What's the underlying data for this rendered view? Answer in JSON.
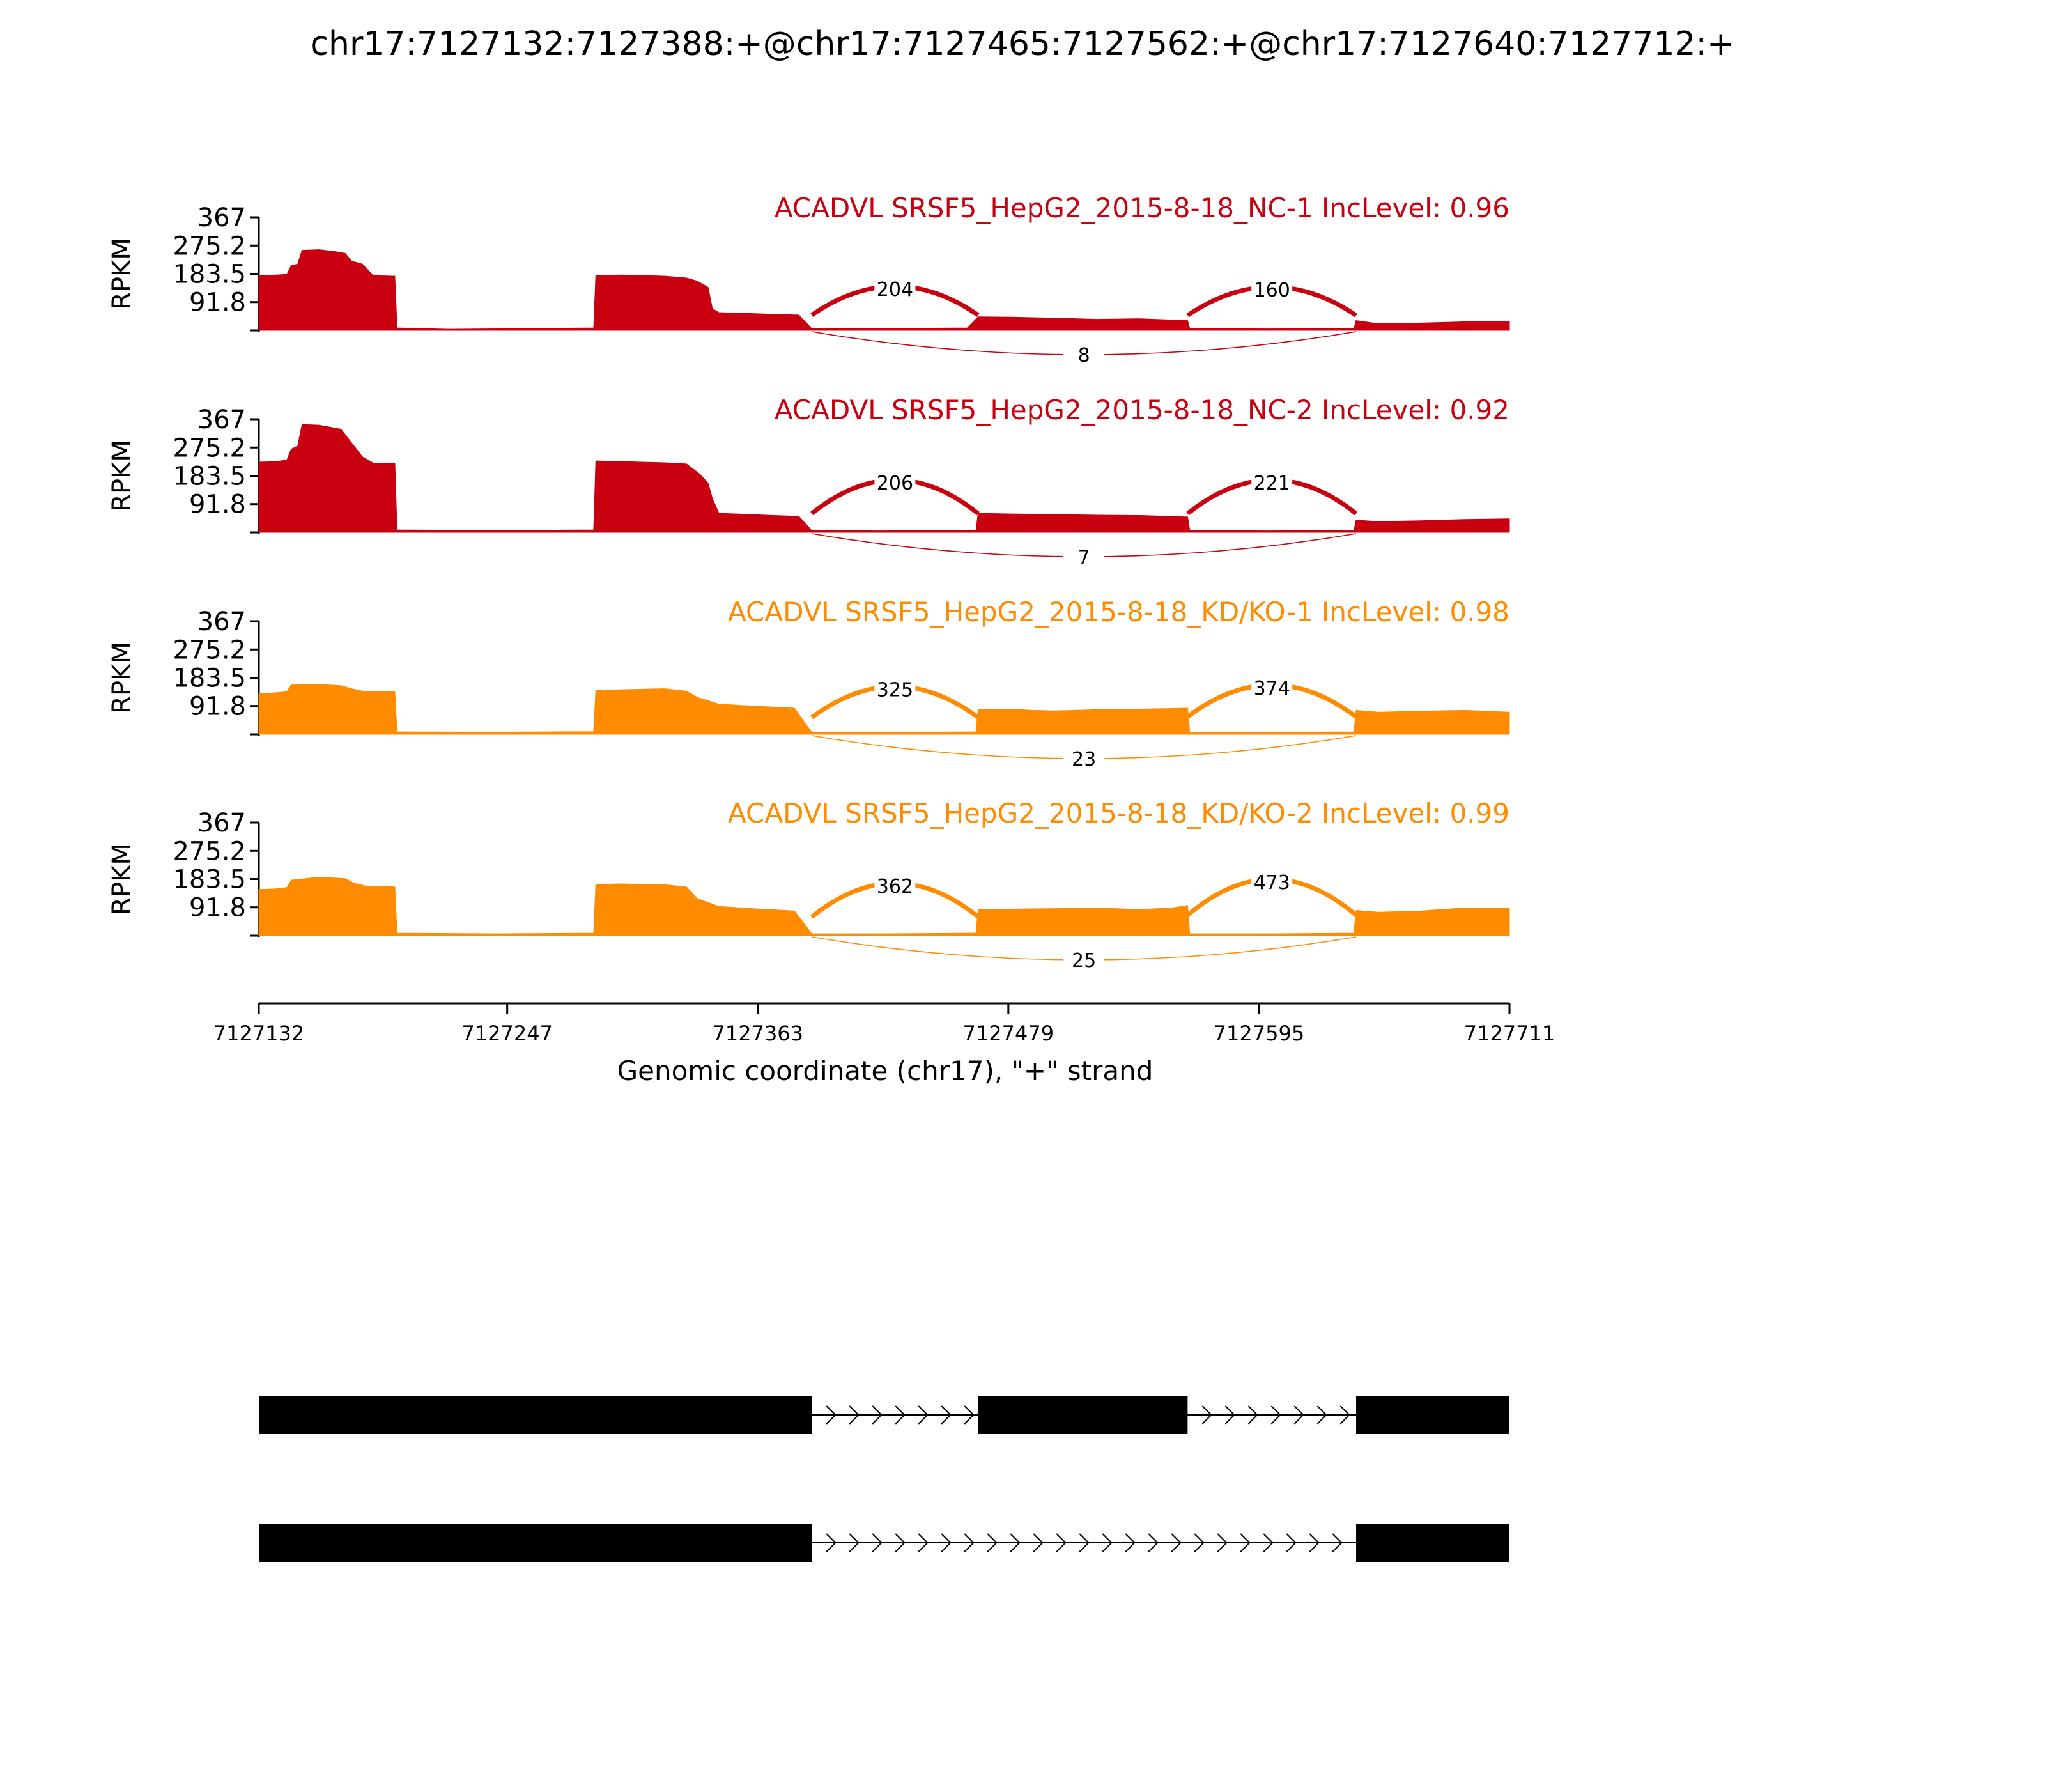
{
  "figure": {
    "title": "chr17:7127132:7127388:+@chr17:7127465:7127562:+@chr17:7127640:7127712:+"
  },
  "chart_data": {
    "type": "area",
    "title": "chr17:7127132:7127388:+@chr17:7127465:7127562:+@chr17:7127640:7127712:+",
    "xlabel": "Genomic coordinate (chr17), \"+\" strand",
    "ylabel": "RPKM",
    "xlim": [
      7127132,
      7127711
    ],
    "ylim": [
      0,
      367
    ],
    "xticks": [
      7127132,
      7127247,
      7127363,
      7127479,
      7127595,
      7127711
    ],
    "yticks": [
      "91.8",
      "183.5",
      "275.2",
      "367"
    ],
    "yticks_values": [
      91.8,
      183.5,
      275.2,
      367
    ],
    "grid": false,
    "colors": {
      "NC": "#c8000f",
      "KD": "#ff8c00"
    },
    "tracks": [
      {
        "name": "ACADVL SRSF5_HepG2_2015-8-18_NC-1 IncLevel: 0.96",
        "group": "NC",
        "color": "#c8000f",
        "coverage": [
          [
            7127132,
            178
          ],
          [
            7127140,
            180
          ],
          [
            7127145,
            182
          ],
          [
            7127147,
            210
          ],
          [
            7127150,
            215
          ],
          [
            7127152,
            260
          ],
          [
            7127160,
            262
          ],
          [
            7127168,
            255
          ],
          [
            7127172,
            250
          ],
          [
            7127175,
            225
          ],
          [
            7127180,
            215
          ],
          [
            7127185,
            178
          ],
          [
            7127195,
            176
          ],
          [
            7127196,
            8
          ],
          [
            7127220,
            4
          ],
          [
            7127260,
            6
          ],
          [
            7127287,
            8
          ],
          [
            7127288,
            178
          ],
          [
            7127300,
            180
          ],
          [
            7127320,
            176
          ],
          [
            7127330,
            170
          ],
          [
            7127335,
            160
          ],
          [
            7127340,
            140
          ],
          [
            7127342,
            70
          ],
          [
            7127345,
            58
          ],
          [
            7127360,
            55
          ],
          [
            7127370,
            52
          ],
          [
            7127382,
            50
          ],
          [
            7127388,
            6
          ],
          [
            7127420,
            6
          ],
          [
            7127460,
            8
          ],
          [
            7127465,
            44
          ],
          [
            7127480,
            43
          ],
          [
            7127500,
            40
          ],
          [
            7127520,
            36
          ],
          [
            7127540,
            38
          ],
          [
            7127562,
            32
          ],
          [
            7127563,
            6
          ],
          [
            7127600,
            5
          ],
          [
            7127639,
            6
          ],
          [
            7127640,
            32
          ],
          [
            7127650,
            22
          ],
          [
            7127670,
            24
          ],
          [
            7127690,
            28
          ],
          [
            7127711,
            28
          ]
        ],
        "junctions": [
          {
            "from": 7127388,
            "to": 7127465,
            "count": "204",
            "level": 118,
            "side": "above"
          },
          {
            "from": 7127562,
            "to": 7127640,
            "count": "160",
            "level": 116,
            "side": "above"
          },
          {
            "from": 7127388,
            "to": 7127640,
            "count": "8",
            "side": "below"
          }
        ]
      },
      {
        "name": "ACADVL SRSF5_HepG2_2015-8-18_NC-2 IncLevel: 0.92",
        "group": "NC",
        "color": "#c8000f",
        "coverage": [
          [
            7127132,
            228
          ],
          [
            7127140,
            230
          ],
          [
            7127145,
            235
          ],
          [
            7127147,
            270
          ],
          [
            7127150,
            280
          ],
          [
            7127152,
            350
          ],
          [
            7127160,
            348
          ],
          [
            7127166,
            340
          ],
          [
            7127170,
            335
          ],
          [
            7127175,
            290
          ],
          [
            7127180,
            245
          ],
          [
            7127185,
            225
          ],
          [
            7127195,
            225
          ],
          [
            7127196,
            8
          ],
          [
            7127240,
            6
          ],
          [
            7127287,
            8
          ],
          [
            7127288,
            232
          ],
          [
            7127300,
            230
          ],
          [
            7127320,
            226
          ],
          [
            7127330,
            222
          ],
          [
            7127336,
            190
          ],
          [
            7127340,
            160
          ],
          [
            7127342,
            110
          ],
          [
            7127345,
            62
          ],
          [
            7127360,
            58
          ],
          [
            7127370,
            55
          ],
          [
            7127382,
            52
          ],
          [
            7127388,
            6
          ],
          [
            7127420,
            5
          ],
          [
            7127464,
            6
          ],
          [
            7127465,
            62
          ],
          [
            7127480,
            60
          ],
          [
            7127500,
            58
          ],
          [
            7127520,
            56
          ],
          [
            7127540,
            55
          ],
          [
            7127562,
            50
          ],
          [
            7127563,
            6
          ],
          [
            7127600,
            5
          ],
          [
            7127639,
            6
          ],
          [
            7127640,
            40
          ],
          [
            7127650,
            35
          ],
          [
            7127670,
            38
          ],
          [
            7127690,
            42
          ],
          [
            7127711,
            44
          ]
        ],
        "junctions": [
          {
            "from": 7127388,
            "to": 7127465,
            "count": "206",
            "level": 145,
            "side": "above"
          },
          {
            "from": 7127562,
            "to": 7127640,
            "count": "221",
            "level": 145,
            "side": "above"
          },
          {
            "from": 7127388,
            "to": 7127640,
            "count": "7",
            "side": "below"
          }
        ]
      },
      {
        "name": "ACADVL SRSF5_HepG2_2015-8-18_KD/KO-1 IncLevel: 0.98",
        "group": "KD",
        "color": "#ff8c00",
        "coverage": [
          [
            7127132,
            132
          ],
          [
            7127140,
            135
          ],
          [
            7127145,
            138
          ],
          [
            7127147,
            160
          ],
          [
            7127160,
            162
          ],
          [
            7127170,
            158
          ],
          [
            7127175,
            148
          ],
          [
            7127180,
            140
          ],
          [
            7127195,
            138
          ],
          [
            7127196,
            8
          ],
          [
            7127240,
            7
          ],
          [
            7127287,
            9
          ],
          [
            7127288,
            142
          ],
          [
            7127300,
            145
          ],
          [
            7127320,
            148
          ],
          [
            7127330,
            140
          ],
          [
            7127335,
            120
          ],
          [
            7127345,
            98
          ],
          [
            7127360,
            92
          ],
          [
            7127380,
            85
          ],
          [
            7127388,
            6
          ],
          [
            7127420,
            6
          ],
          [
            7127464,
            8
          ],
          [
            7127465,
            80
          ],
          [
            7127480,
            82
          ],
          [
            7127490,
            78
          ],
          [
            7127500,
            76
          ],
          [
            7127520,
            80
          ],
          [
            7127540,
            82
          ],
          [
            7127562,
            85
          ],
          [
            7127563,
            6
          ],
          [
            7127600,
            6
          ],
          [
            7127639,
            8
          ],
          [
            7127640,
            78
          ],
          [
            7127650,
            72
          ],
          [
            7127670,
            75
          ],
          [
            7127690,
            78
          ],
          [
            7127711,
            72
          ]
        ],
        "junctions": [
          {
            "from": 7127388,
            "to": 7127465,
            "count": "325",
            "level": 130,
            "side": "above"
          },
          {
            "from": 7127562,
            "to": 7127640,
            "count": "374",
            "level": 135,
            "side": "above"
          },
          {
            "from": 7127388,
            "to": 7127640,
            "count": "23",
            "side": "below"
          }
        ]
      },
      {
        "name": "ACADVL SRSF5_HepG2_2015-8-18_KD/KO-2 IncLevel: 0.99",
        "group": "KD",
        "color": "#ff8c00",
        "coverage": [
          [
            7127132,
            150
          ],
          [
            7127140,
            152
          ],
          [
            7127145,
            156
          ],
          [
            7127147,
            180
          ],
          [
            7127160,
            190
          ],
          [
            7127172,
            185
          ],
          [
            7127176,
            170
          ],
          [
            7127182,
            160
          ],
          [
            7127195,
            158
          ],
          [
            7127196,
            8
          ],
          [
            7127240,
            6
          ],
          [
            7127287,
            8
          ],
          [
            7127288,
            166
          ],
          [
            7127300,
            168
          ],
          [
            7127320,
            165
          ],
          [
            7127330,
            158
          ],
          [
            7127335,
            120
          ],
          [
            7127345,
            95
          ],
          [
            7127360,
            88
          ],
          [
            7127380,
            80
          ],
          [
            7127388,
            6
          ],
          [
            7127420,
            6
          ],
          [
            7127464,
            8
          ],
          [
            7127465,
            84
          ],
          [
            7127480,
            86
          ],
          [
            7127500,
            88
          ],
          [
            7127520,
            90
          ],
          [
            7127540,
            85
          ],
          [
            7127555,
            90
          ],
          [
            7127562,
            98
          ],
          [
            7127563,
            6
          ],
          [
            7127600,
            6
          ],
          [
            7127639,
            8
          ],
          [
            7127640,
            82
          ],
          [
            7127650,
            76
          ],
          [
            7127670,
            80
          ],
          [
            7127690,
            90
          ],
          [
            7127711,
            88
          ]
        ],
        "junctions": [
          {
            "from": 7127388,
            "to": 7127465,
            "count": "362",
            "level": 145,
            "side": "above"
          },
          {
            "from": 7127562,
            "to": 7127640,
            "count": "473",
            "level": 158,
            "side": "above"
          },
          {
            "from": 7127388,
            "to": 7127640,
            "count": "25",
            "side": "below"
          }
        ]
      }
    ],
    "isoforms": [
      {
        "exons": [
          [
            7127132,
            7127388
          ],
          [
            7127465,
            7127562
          ],
          [
            7127640,
            7127711
          ]
        ]
      },
      {
        "exons": [
          [
            7127132,
            7127388
          ],
          [
            7127640,
            7127711
          ]
        ]
      }
    ]
  }
}
